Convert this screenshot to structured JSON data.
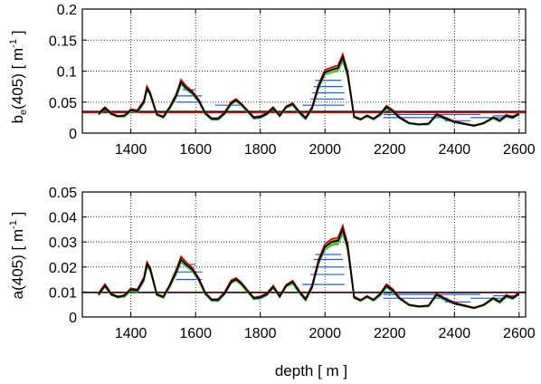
{
  "chart_data": [
    {
      "type": "line",
      "ylabel": {
        "main": "b",
        "sub": "e",
        "rest": "(405) [ m",
        "sup": "-1",
        "end": " ]"
      },
      "xlim": [
        1250,
        2620
      ],
      "ylim": [
        0,
        0.2
      ],
      "xticks": [
        1400,
        1600,
        1800,
        2000,
        2200,
        2400,
        2600
      ],
      "xtick_labels": [
        "1400",
        "1600",
        "1800",
        "2000",
        "2200",
        "2400",
        "2600"
      ],
      "yticks": [
        0,
        0.05,
        0.1,
        0.15,
        0.2
      ],
      "ytick_labels": [
        "0",
        "0.05",
        "0.1",
        "0.15",
        "0.2"
      ],
      "grid": true,
      "reference_lines": [
        {
          "color": "#ff0000",
          "y": 0.033
        },
        {
          "color": "#000000",
          "y": 0.035
        }
      ],
      "blue_layer_lines": [
        {
          "x": [
            1540,
            1620
          ],
          "y": 0.05
        },
        {
          "x": [
            1540,
            1620
          ],
          "y": 0.06
        },
        {
          "x": [
            1560,
            1600
          ],
          "y": 0.07
        },
        {
          "x": [
            1660,
            1740
          ],
          "y": 0.045
        },
        {
          "x": [
            1930,
            2060
          ],
          "y": 0.045
        },
        {
          "x": [
            1955,
            2060
          ],
          "y": 0.055
        },
        {
          "x": [
            1960,
            2060
          ],
          "y": 0.065
        },
        {
          "x": [
            1965,
            2055
          ],
          "y": 0.075
        },
        {
          "x": [
            1970,
            2050
          ],
          "y": 0.085
        },
        {
          "x": [
            2180,
            2480
          ],
          "y": 0.03
        },
        {
          "x": [
            2180,
            2380
          ],
          "y": 0.025
        },
        {
          "x": [
            2370,
            2450
          ],
          "y": 0.02
        },
        {
          "x": [
            2450,
            2560
          ],
          "y": 0.025
        },
        {
          "x": [
            2520,
            2600
          ],
          "y": 0.028
        }
      ],
      "profile": {
        "x": [
          1300,
          1320,
          1340,
          1360,
          1380,
          1400,
          1420,
          1440,
          1450,
          1460,
          1480,
          1500,
          1520,
          1540,
          1555,
          1570,
          1590,
          1610,
          1630,
          1650,
          1670,
          1690,
          1710,
          1725,
          1740,
          1760,
          1780,
          1800,
          1820,
          1840,
          1860,
          1880,
          1900,
          1920,
          1940,
          1960,
          1980,
          2000,
          2020,
          2040,
          2055,
          2070,
          2080,
          2090,
          2110,
          2130,
          2150,
          2170,
          2190,
          2210,
          2230,
          2260,
          2290,
          2320,
          2345,
          2370,
          2400,
          2430,
          2460,
          2490,
          2520,
          2540,
          2560,
          2580,
          2600
        ],
        "y": [
          0.031,
          0.04,
          0.031,
          0.027,
          0.028,
          0.037,
          0.035,
          0.05,
          0.072,
          0.063,
          0.03,
          0.026,
          0.041,
          0.06,
          0.082,
          0.073,
          0.065,
          0.052,
          0.032,
          0.023,
          0.023,
          0.032,
          0.048,
          0.053,
          0.047,
          0.036,
          0.025,
          0.026,
          0.031,
          0.04,
          0.028,
          0.042,
          0.047,
          0.034,
          0.024,
          0.04,
          0.075,
          0.098,
          0.102,
          0.105,
          0.122,
          0.095,
          0.06,
          0.026,
          0.022,
          0.028,
          0.023,
          0.03,
          0.042,
          0.035,
          0.025,
          0.016,
          0.014,
          0.015,
          0.03,
          0.024,
          0.018,
          0.015,
          0.012,
          0.016,
          0.025,
          0.02,
          0.028,
          0.025,
          0.031
        ]
      }
    },
    {
      "type": "line",
      "ylabel": {
        "main": "a(405) [ m",
        "sup": "-1",
        "end": " ]"
      },
      "xlabel": "depth [ m ]",
      "xlim": [
        1250,
        2620
      ],
      "ylim": [
        0,
        0.05
      ],
      "xticks": [
        1400,
        1600,
        1800,
        2000,
        2200,
        2400,
        2600
      ],
      "xtick_labels": [
        "1400",
        "1600",
        "1800",
        "2000",
        "2200",
        "2400",
        "2600"
      ],
      "yticks": [
        0,
        0.01,
        0.02,
        0.03,
        0.04,
        0.05
      ],
      "ytick_labels": [
        "0",
        "0.01",
        "0.02",
        "0.03",
        "0.04",
        "0.05"
      ],
      "grid": true,
      "reference_lines": [
        {
          "color": "#ff0000",
          "y": 0.0098
        },
        {
          "color": "#000000",
          "y": 0.0098
        }
      ],
      "blue_layer_lines": [
        {
          "x": [
            1540,
            1620
          ],
          "y": 0.015
        },
        {
          "x": [
            1540,
            1620
          ],
          "y": 0.018
        },
        {
          "x": [
            1560,
            1600
          ],
          "y": 0.021
        },
        {
          "x": [
            1930,
            2060
          ],
          "y": 0.013
        },
        {
          "x": [
            1955,
            2060
          ],
          "y": 0.017
        },
        {
          "x": [
            1960,
            2060
          ],
          "y": 0.02
        },
        {
          "x": [
            1965,
            2055
          ],
          "y": 0.023
        },
        {
          "x": [
            1970,
            2050
          ],
          "y": 0.025
        },
        {
          "x": [
            2180,
            2480
          ],
          "y": 0.009
        },
        {
          "x": [
            2180,
            2380
          ],
          "y": 0.0075
        },
        {
          "x": [
            2370,
            2450
          ],
          "y": 0.006
        },
        {
          "x": [
            2450,
            2560
          ],
          "y": 0.0075
        },
        {
          "x": [
            2520,
            2600
          ],
          "y": 0.0085
        }
      ],
      "profile": {
        "x": [
          1300,
          1320,
          1340,
          1360,
          1380,
          1400,
          1420,
          1440,
          1450,
          1460,
          1480,
          1500,
          1520,
          1540,
          1555,
          1570,
          1590,
          1610,
          1630,
          1650,
          1670,
          1690,
          1710,
          1725,
          1740,
          1760,
          1780,
          1800,
          1820,
          1840,
          1860,
          1880,
          1900,
          1920,
          1940,
          1960,
          1980,
          2000,
          2020,
          2040,
          2055,
          2070,
          2080,
          2090,
          2110,
          2130,
          2150,
          2170,
          2190,
          2210,
          2230,
          2260,
          2290,
          2320,
          2345,
          2370,
          2400,
          2430,
          2460,
          2490,
          2520,
          2540,
          2560,
          2580,
          2600
        ],
        "y": [
          0.009,
          0.0125,
          0.009,
          0.008,
          0.0085,
          0.011,
          0.0105,
          0.015,
          0.021,
          0.019,
          0.009,
          0.008,
          0.0125,
          0.018,
          0.023,
          0.021,
          0.019,
          0.015,
          0.0095,
          0.0068,
          0.0068,
          0.0095,
          0.014,
          0.015,
          0.0135,
          0.0105,
          0.0075,
          0.0078,
          0.009,
          0.012,
          0.0082,
          0.0125,
          0.014,
          0.0102,
          0.007,
          0.012,
          0.022,
          0.028,
          0.03,
          0.0305,
          0.035,
          0.028,
          0.018,
          0.0078,
          0.0066,
          0.0082,
          0.0068,
          0.009,
          0.0125,
          0.0105,
          0.0075,
          0.0048,
          0.0042,
          0.0045,
          0.009,
          0.0072,
          0.0054,
          0.0045,
          0.0036,
          0.0048,
          0.0075,
          0.006,
          0.0084,
          0.0075,
          0.0093
        ]
      }
    }
  ],
  "ensemble_colors": [
    "#00b050",
    "#33cc33",
    "#66cc00",
    "#99cc00",
    "#00cccc",
    "#00a0c0",
    "#3399ff",
    "#ff9900",
    "#cc0000"
  ],
  "blue_color": "#1f5fd6"
}
